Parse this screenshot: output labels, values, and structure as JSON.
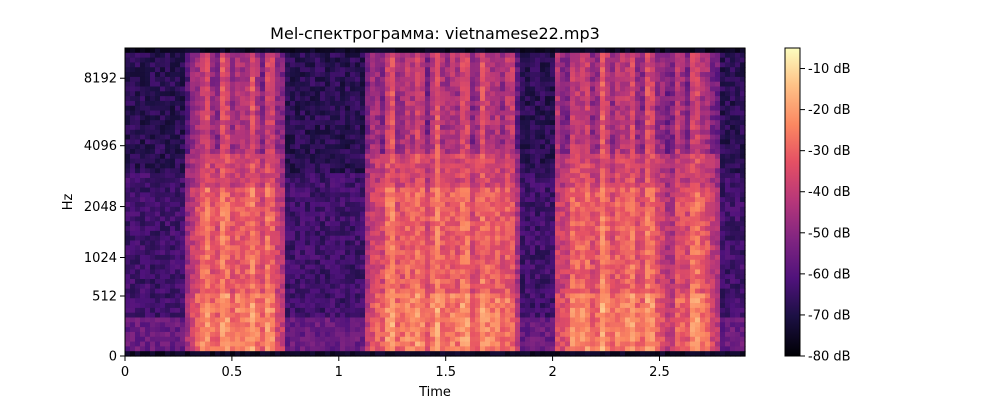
{
  "chart_data": {
    "type": "heatmap",
    "title": "Mel-спектрограмма: vietnamese22.mp3",
    "xlabel": "Time",
    "ylabel": "Hz",
    "x_range": [
      0,
      2.9
    ],
    "x_ticks": [
      {
        "value": 0,
        "label": "0"
      },
      {
        "value": 0.5,
        "label": "0.5"
      },
      {
        "value": 1,
        "label": "1"
      },
      {
        "value": 1.5,
        "label": "1.5"
      },
      {
        "value": 2,
        "label": "2"
      },
      {
        "value": 2.5,
        "label": "2.5"
      }
    ],
    "y_scale": "mel",
    "y_range": [
      0,
      11025
    ],
    "y_ticks": [
      {
        "value": 0,
        "label": "0"
      },
      {
        "value": 512,
        "label": "512"
      },
      {
        "value": 1024,
        "label": "1024"
      },
      {
        "value": 2048,
        "label": "2048"
      },
      {
        "value": 4096,
        "label": "4096"
      },
      {
        "value": 8192,
        "label": "8192"
      }
    ],
    "colorbar": {
      "colormap": "magma",
      "range": [
        -80,
        -5
      ],
      "ticks": [
        {
          "value": -10,
          "label": "-10 dB"
        },
        {
          "value": -20,
          "label": "-20 dB"
        },
        {
          "value": -30,
          "label": "-30 dB"
        },
        {
          "value": -40,
          "label": "-40 dB"
        },
        {
          "value": -50,
          "label": "-50 dB"
        },
        {
          "value": -60,
          "label": "-60 dB"
        },
        {
          "value": -70,
          "label": "-70 dB"
        },
        {
          "value": -80,
          "label": "-80 dB"
        }
      ]
    },
    "speech_segments": [
      {
        "start": 0.29,
        "end": 0.75
      },
      {
        "start": 1.13,
        "end": 1.85
      },
      {
        "start": 2.01,
        "end": 2.55
      },
      {
        "start": 2.55,
        "end": 2.78
      }
    ]
  }
}
